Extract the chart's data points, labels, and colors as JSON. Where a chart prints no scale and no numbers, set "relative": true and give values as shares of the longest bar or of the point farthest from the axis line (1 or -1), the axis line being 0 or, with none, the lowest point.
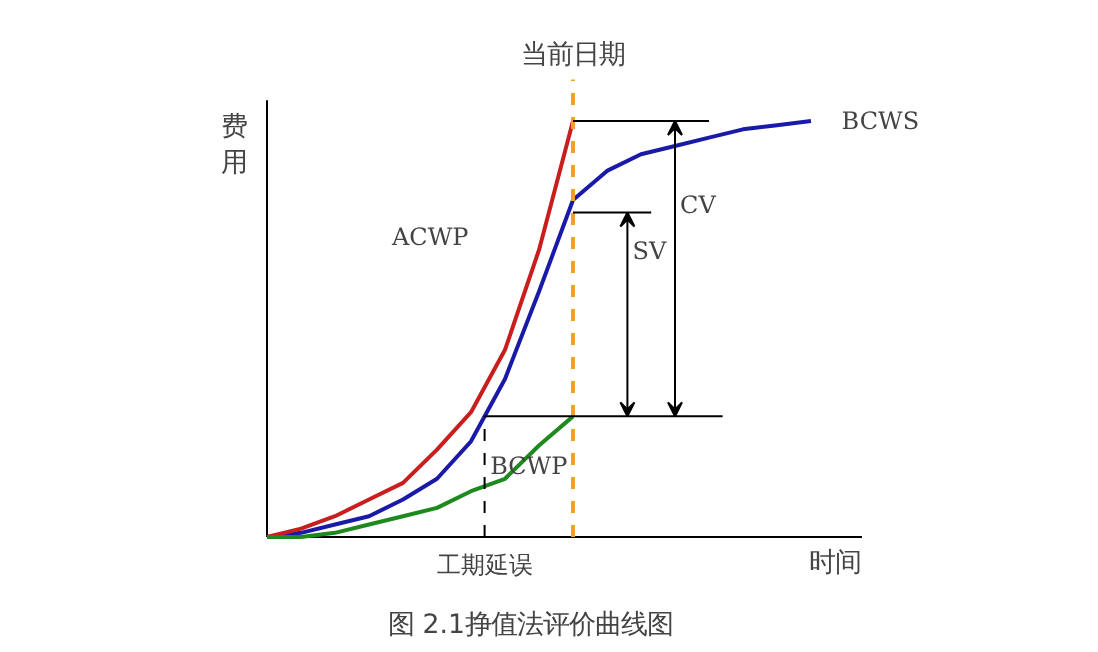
{
  "chart_data": {
    "type": "line",
    "relative": true,
    "title": "图 2.1挣值法评价曲线图",
    "xlabel": "时间",
    "ylabel": "费用",
    "categories": [
      null,
      null,
      null,
      null,
      null,
      null,
      null,
      null,
      null,
      null,
      null,
      null,
      null,
      null,
      null,
      null,
      null
    ],
    "series": [
      {
        "name": "BCWS",
        "color": "#1a1aa8",
        "values": [
          0,
          0.01,
          0.03,
          0.05,
          0.09,
          0.14,
          0.23,
          0.38,
          0.59,
          0.81,
          0.88,
          0.92,
          0.94,
          0.96,
          0.98,
          0.99,
          1.0
        ]
      },
      {
        "name": "ACWP",
        "color": "#c81e1e",
        "values": [
          0,
          0.02,
          0.05,
          0.09,
          0.13,
          0.21,
          0.3,
          0.45,
          0.69,
          1.0,
          null,
          null,
          null,
          null,
          null,
          null,
          null
        ]
      },
      {
        "name": "BCWP",
        "color": "#1e8a1e",
        "values": [
          0,
          0,
          0.01,
          0.03,
          0.05,
          0.07,
          0.11,
          0.14,
          0.22,
          0.29,
          null,
          null,
          null,
          null,
          null,
          null,
          null
        ]
      }
    ],
    "annotations": [
      "当前日期",
      "工期延误",
      "SV",
      "CV"
    ],
    "ref_lines": [
      {
        "axis": "y",
        "value": 0.29,
        "color": "#000000"
      }
    ],
    "marker": "none",
    "line_style": "solid"
  }
}
